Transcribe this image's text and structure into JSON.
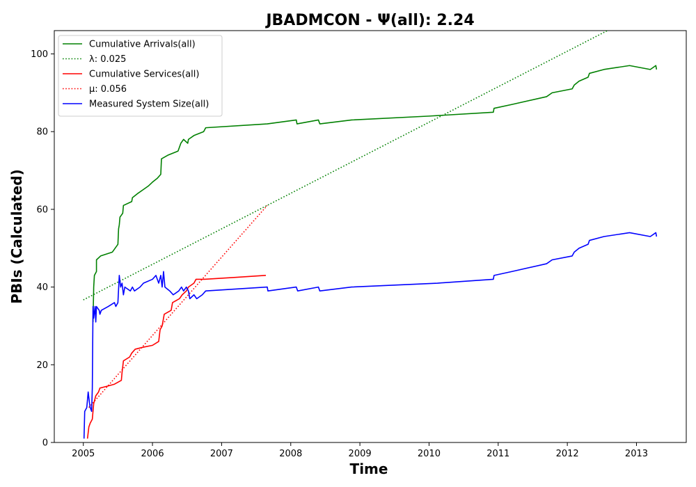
{
  "chart_data": {
    "type": "line",
    "title": "JBADMCON -  Ψ(all): 2.24",
    "xlabel": "Time",
    "ylabel": "PBIs (Calculated)",
    "xlim": [
      2004.58,
      2013.72
    ],
    "ylim": [
      0,
      106
    ],
    "xticks": [
      2005,
      2006,
      2007,
      2008,
      2009,
      2010,
      2011,
      2012,
      2013
    ],
    "yticks": [
      0,
      20,
      40,
      60,
      80,
      100
    ],
    "grid": false,
    "legend_position": "top-left",
    "series": [
      {
        "name": "Cumulative Arrivals(all)",
        "color": "#008000",
        "style": "solid",
        "points": [
          [
            2005.14,
            31
          ],
          [
            2005.15,
            40
          ],
          [
            2005.16,
            43
          ],
          [
            2005.19,
            44
          ],
          [
            2005.19,
            47
          ],
          [
            2005.25,
            48
          ],
          [
            2005.42,
            49
          ],
          [
            2005.5,
            51
          ],
          [
            2005.51,
            55
          ],
          [
            2005.52,
            56
          ],
          [
            2005.53,
            58
          ],
          [
            2005.57,
            59
          ],
          [
            2005.58,
            61
          ],
          [
            2005.7,
            62
          ],
          [
            2005.71,
            63
          ],
          [
            2005.78,
            64
          ],
          [
            2005.86,
            65
          ],
          [
            2005.94,
            66
          ],
          [
            2006.0,
            67
          ],
          [
            2006.07,
            68
          ],
          [
            2006.12,
            69
          ],
          [
            2006.13,
            73
          ],
          [
            2006.23,
            74
          ],
          [
            2006.37,
            75
          ],
          [
            2006.41,
            77
          ],
          [
            2006.45,
            78
          ],
          [
            2006.51,
            77
          ],
          [
            2006.52,
            78
          ],
          [
            2006.6,
            79
          ],
          [
            2006.74,
            80
          ],
          [
            2006.77,
            81
          ],
          [
            2007.66,
            82
          ],
          [
            2008.08,
            83
          ],
          [
            2008.09,
            82
          ],
          [
            2008.4,
            83
          ],
          [
            2008.42,
            82
          ],
          [
            2008.88,
            83
          ],
          [
            2010.0,
            84
          ],
          [
            2010.93,
            85
          ],
          [
            2010.94,
            86
          ],
          [
            2011.2,
            87
          ],
          [
            2011.7,
            89
          ],
          [
            2011.78,
            90
          ],
          [
            2012.07,
            91
          ],
          [
            2012.1,
            92
          ],
          [
            2012.17,
            93
          ],
          [
            2012.3,
            94
          ],
          [
            2012.32,
            95
          ],
          [
            2012.53,
            96
          ],
          [
            2012.9,
            97
          ],
          [
            2013.2,
            96
          ],
          [
            2013.28,
            97
          ],
          [
            2013.29,
            96
          ]
        ]
      },
      {
        "name": "λ: 0.025",
        "color": "#008000",
        "style": "dotted",
        "points": [
          [
            2005.0,
            36.7
          ],
          [
            2012.58,
            106
          ]
        ]
      },
      {
        "name": "Cumulative Services(all)",
        "color": "#ff0000",
        "style": "solid",
        "points": [
          [
            2005.06,
            1
          ],
          [
            2005.08,
            4
          ],
          [
            2005.1,
            5
          ],
          [
            2005.13,
            6
          ],
          [
            2005.14,
            8
          ],
          [
            2005.15,
            10
          ],
          [
            2005.18,
            12
          ],
          [
            2005.22,
            13
          ],
          [
            2005.24,
            14
          ],
          [
            2005.35,
            14.5
          ],
          [
            2005.45,
            15
          ],
          [
            2005.5,
            15.5
          ],
          [
            2005.55,
            16
          ],
          [
            2005.56,
            18
          ],
          [
            2005.58,
            21
          ],
          [
            2005.67,
            22
          ],
          [
            2005.7,
            23
          ],
          [
            2005.75,
            24
          ],
          [
            2005.86,
            24.5
          ],
          [
            2006.0,
            25
          ],
          [
            2006.09,
            26
          ],
          [
            2006.11,
            29
          ],
          [
            2006.14,
            30
          ],
          [
            2006.17,
            33
          ],
          [
            2006.27,
            34
          ],
          [
            2006.29,
            36
          ],
          [
            2006.39,
            37
          ],
          [
            2006.43,
            38
          ],
          [
            2006.49,
            39
          ],
          [
            2006.52,
            40
          ],
          [
            2006.6,
            41
          ],
          [
            2006.63,
            42
          ],
          [
            2006.75,
            42
          ],
          [
            2007.2,
            42.5
          ],
          [
            2007.64,
            43
          ]
        ]
      },
      {
        "name": "μ: 0.056",
        "color": "#ff0000",
        "style": "dotted",
        "points": [
          [
            2005.08,
            9
          ],
          [
            2007.66,
            61
          ]
        ]
      },
      {
        "name": "Measured System Size(all)",
        "color": "#0000ff",
        "style": "solid",
        "points": [
          [
            2005.01,
            1
          ],
          [
            2005.02,
            8
          ],
          [
            2005.05,
            9
          ],
          [
            2005.07,
            13
          ],
          [
            2005.09,
            10
          ],
          [
            2005.1,
            9
          ],
          [
            2005.12,
            8
          ],
          [
            2005.13,
            14
          ],
          [
            2005.14,
            35
          ],
          [
            2005.15,
            32
          ],
          [
            2005.17,
            35
          ],
          [
            2005.18,
            31
          ],
          [
            2005.19,
            35
          ],
          [
            2005.23,
            34
          ],
          [
            2005.24,
            33
          ],
          [
            2005.26,
            34
          ],
          [
            2005.36,
            35
          ],
          [
            2005.45,
            36
          ],
          [
            2005.47,
            35
          ],
          [
            2005.5,
            36
          ],
          [
            2005.52,
            43
          ],
          [
            2005.54,
            40
          ],
          [
            2005.56,
            41
          ],
          [
            2005.58,
            38
          ],
          [
            2005.6,
            40
          ],
          [
            2005.68,
            39
          ],
          [
            2005.71,
            40
          ],
          [
            2005.74,
            39
          ],
          [
            2005.82,
            40
          ],
          [
            2005.87,
            41
          ],
          [
            2006.0,
            42
          ],
          [
            2006.05,
            43
          ],
          [
            2006.09,
            41
          ],
          [
            2006.12,
            43
          ],
          [
            2006.14,
            40
          ],
          [
            2006.16,
            44
          ],
          [
            2006.18,
            40
          ],
          [
            2006.25,
            39
          ],
          [
            2006.3,
            38
          ],
          [
            2006.38,
            39
          ],
          [
            2006.42,
            40
          ],
          [
            2006.45,
            39
          ],
          [
            2006.49,
            40
          ],
          [
            2006.52,
            39
          ],
          [
            2006.54,
            37
          ],
          [
            2006.6,
            38
          ],
          [
            2006.64,
            37
          ],
          [
            2006.72,
            38
          ],
          [
            2006.77,
            39
          ],
          [
            2007.66,
            40
          ],
          [
            2007.67,
            39
          ],
          [
            2008.08,
            40
          ],
          [
            2008.1,
            39
          ],
          [
            2008.4,
            40
          ],
          [
            2008.42,
            39
          ],
          [
            2008.88,
            40
          ],
          [
            2010.12,
            41
          ],
          [
            2010.93,
            42
          ],
          [
            2010.94,
            43
          ],
          [
            2011.2,
            44
          ],
          [
            2011.7,
            46
          ],
          [
            2011.78,
            47
          ],
          [
            2012.07,
            48
          ],
          [
            2012.1,
            49
          ],
          [
            2012.17,
            50
          ],
          [
            2012.3,
            51
          ],
          [
            2012.32,
            52
          ],
          [
            2012.53,
            53
          ],
          [
            2012.9,
            54
          ],
          [
            2013.2,
            53
          ],
          [
            2013.28,
            54
          ],
          [
            2013.29,
            53
          ]
        ]
      }
    ]
  }
}
